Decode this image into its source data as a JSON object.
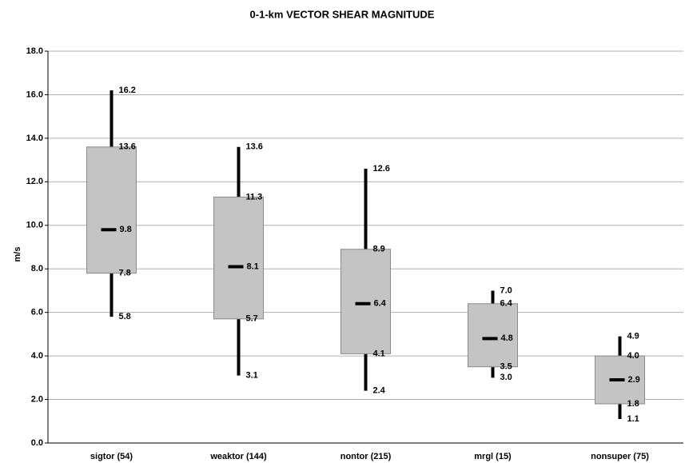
{
  "chart_data": {
    "type": "box",
    "title": "0-1-km VECTOR SHEAR MAGNITUDE",
    "y_label": "m/s",
    "categories": [
      "sigtor (54)",
      "weaktor (144)",
      "nontor (215)",
      "mrgl (15)",
      "nonsuper (75)"
    ],
    "stats": {
      "low": {
        "values": [
          5.8,
          3.1,
          2.4,
          3.0,
          1.1
        ],
        "value_labels": [
          "5.8",
          "3.1",
          "2.4",
          "3.0",
          "1.1"
        ]
      },
      "q1": {
        "values": [
          7.8,
          5.7,
          4.1,
          3.5,
          1.8
        ],
        "value_labels": [
          "7.8",
          "5.7",
          "4.1",
          "3.5",
          "1.8"
        ]
      },
      "median": {
        "values": [
          9.8,
          8.1,
          6.4,
          4.8,
          2.9
        ],
        "value_labels": [
          "9.8",
          "8.1",
          "6.4",
          "4.8",
          "2.9"
        ]
      },
      "q3": {
        "values": [
          13.6,
          11.3,
          8.9,
          6.4,
          4.0
        ],
        "value_labels": [
          "13.6",
          "11.3",
          "8.9",
          "6.4",
          "4.0"
        ]
      },
      "high": {
        "values": [
          16.2,
          13.6,
          12.6,
          7.0,
          4.9
        ],
        "value_labels": [
          "16.2",
          "13.6",
          "12.6",
          "7.0",
          "4.9"
        ]
      }
    },
    "box_color": "#c4c4c4",
    "whisker_color": "#000000",
    "ylim": [
      0,
      18
    ],
    "yticks": [
      {
        "value": 0,
        "label": "0.0"
      },
      {
        "value": 2,
        "label": "2.0"
      },
      {
        "value": 4,
        "label": "4.0"
      },
      {
        "value": 6,
        "label": "6.0"
      },
      {
        "value": 8,
        "label": "8.0"
      },
      {
        "value": 10,
        "label": "10.0"
      },
      {
        "value": 12,
        "label": "12.0"
      },
      {
        "value": 14,
        "label": "14.0"
      },
      {
        "value": 16,
        "label": "16.0"
      },
      {
        "value": 18,
        "label": "18.0"
      }
    ],
    "grid": true
  }
}
